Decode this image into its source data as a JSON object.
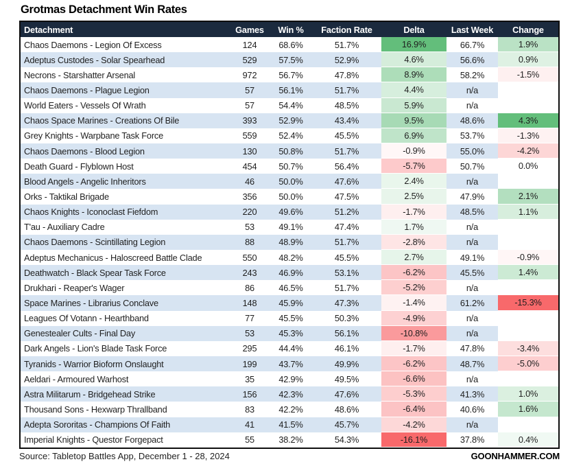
{
  "title": "Grotmas Detachment Win Rates",
  "footer": {
    "source": "Source: Tabletop Battles App, December 1 - 28, 2024",
    "site": "GOONHAMMER.COM"
  },
  "colors": {
    "header_bg": "#1b2a3e",
    "header_text": "#ffffff",
    "stripe": "#d7e4f2",
    "positive_max": "#63be7b",
    "negative_max": "#f8696b",
    "neutral": "#ffffff",
    "border": "#0d0d0d"
  },
  "chart_data": {
    "type": "table",
    "title": "Grotmas Detachment Win Rates",
    "columns": [
      "Detachment",
      "Games",
      "Win %",
      "Faction Rate",
      "Delta",
      "Last Week",
      "Change"
    ],
    "conditional_format_columns": [
      "Delta",
      "Change"
    ],
    "rows": [
      [
        "Chaos Daemons - Legion Of Excess",
        "124",
        "68.6%",
        "51.7%",
        "16.9%",
        "66.7%",
        "1.9%"
      ],
      [
        "Adeptus Custodes - Solar Spearhead",
        "529",
        "57.5%",
        "52.9%",
        "4.6%",
        "56.6%",
        "0.9%"
      ],
      [
        "Necrons - Starshatter Arsenal",
        "972",
        "56.7%",
        "47.8%",
        "8.9%",
        "58.2%",
        "-1.5%"
      ],
      [
        "Chaos Daemons - Plague Legion",
        "57",
        "56.1%",
        "51.7%",
        "4.4%",
        "n/a",
        ""
      ],
      [
        "World Eaters - Vessels Of Wrath",
        "57",
        "54.4%",
        "48.5%",
        "5.9%",
        "n/a",
        ""
      ],
      [
        "Chaos Space Marines - Creations Of Bile",
        "393",
        "52.9%",
        "43.4%",
        "9.5%",
        "48.6%",
        "4.3%"
      ],
      [
        "Grey Knights - Warpbane Task Force",
        "559",
        "52.4%",
        "45.5%",
        "6.9%",
        "53.7%",
        "-1.3%"
      ],
      [
        "Chaos Daemons - Blood Legion",
        "130",
        "50.8%",
        "51.7%",
        "-0.9%",
        "55.0%",
        "-4.2%"
      ],
      [
        "Death Guard - Flyblown Host",
        "454",
        "50.7%",
        "56.4%",
        "-5.7%",
        "50.7%",
        "0.0%"
      ],
      [
        "Blood Angels - Angelic Inheritors",
        "46",
        "50.0%",
        "47.6%",
        "2.4%",
        "n/a",
        ""
      ],
      [
        "Orks - Taktikal Brigade",
        "356",
        "50.0%",
        "47.5%",
        "2.5%",
        "47.9%",
        "2.1%"
      ],
      [
        "Chaos Knights - Iconoclast Fiefdom",
        "220",
        "49.6%",
        "51.2%",
        "-1.7%",
        "48.5%",
        "1.1%"
      ],
      [
        "T'au - Auxiliary Cadre",
        "53",
        "49.1%",
        "47.4%",
        "1.7%",
        "n/a",
        ""
      ],
      [
        "Chaos Daemons - Scintillating Legion",
        "88",
        "48.9%",
        "51.7%",
        "-2.8%",
        "n/a",
        ""
      ],
      [
        "Adeptus Mechanicus - Haloscreed Battle Clade",
        "550",
        "48.2%",
        "45.5%",
        "2.7%",
        "49.1%",
        "-0.9%"
      ],
      [
        "Deathwatch - Black Spear Task Force",
        "243",
        "46.9%",
        "53.1%",
        "-6.2%",
        "45.5%",
        "1.4%"
      ],
      [
        "Drukhari - Reaper's Wager",
        "86",
        "46.5%",
        "51.7%",
        "-5.2%",
        "n/a",
        ""
      ],
      [
        "Space Marines - Librarius Conclave",
        "148",
        "45.9%",
        "47.3%",
        "-1.4%",
        "61.2%",
        "-15.3%"
      ],
      [
        "Leagues Of Votann - Hearthband",
        "77",
        "45.5%",
        "50.3%",
        "-4.9%",
        "n/a",
        ""
      ],
      [
        "Genestealer Cults - Final Day",
        "53",
        "45.3%",
        "56.1%",
        "-10.8%",
        "n/a",
        ""
      ],
      [
        "Dark Angels - Lion's Blade Task Force",
        "295",
        "44.4%",
        "46.1%",
        "-1.7%",
        "47.8%",
        "-3.4%"
      ],
      [
        "Tyranids - Warrior Bioform Onslaught",
        "199",
        "43.7%",
        "49.9%",
        "-6.2%",
        "48.7%",
        "-5.0%"
      ],
      [
        "Aeldari - Armoured Warhost",
        "35",
        "42.9%",
        "49.5%",
        "-6.6%",
        "n/a",
        ""
      ],
      [
        "Astra Militarum - Bridgehead Strike",
        "156",
        "42.3%",
        "47.6%",
        "-5.3%",
        "41.3%",
        "1.0%"
      ],
      [
        "Thousand Sons - Hexwarp Thrallband",
        "83",
        "42.2%",
        "48.6%",
        "-6.4%",
        "40.6%",
        "1.6%"
      ],
      [
        "Adepta Sororitas - Champions Of Faith",
        "41",
        "41.5%",
        "45.7%",
        "-4.2%",
        "n/a",
        ""
      ],
      [
        "Imperial Knights - Questor Forgepact",
        "55",
        "38.2%",
        "54.3%",
        "-16.1%",
        "37.8%",
        "0.4%"
      ]
    ]
  }
}
